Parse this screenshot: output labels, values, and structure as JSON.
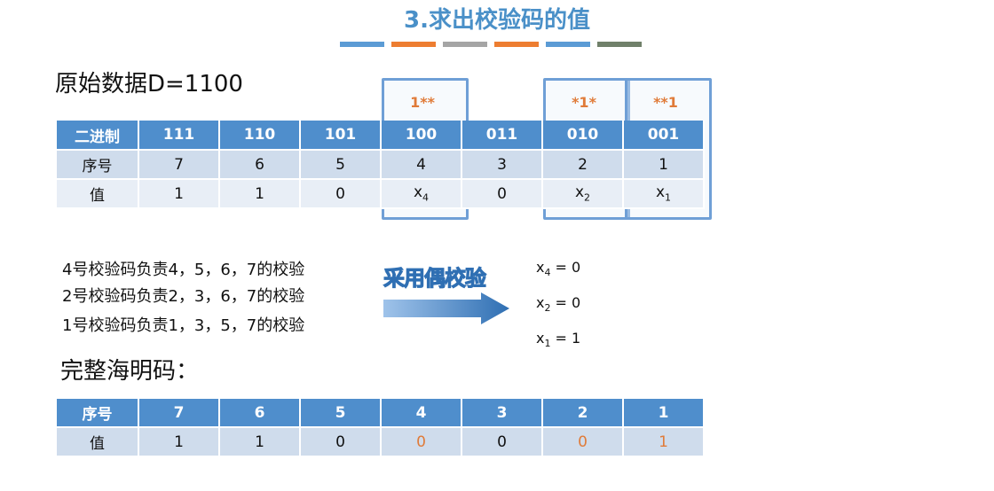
{
  "title": "3.求出校验码的值",
  "title_bar_colors": [
    "#5b9bd5",
    "#ed7d31",
    "#a5a5a5",
    "#ed7d31",
    "#5b9bd5",
    "#70806a"
  ],
  "original_data": "原始数据D=1100",
  "top_table": {
    "row_headers": [
      "二进制",
      "序号",
      "值"
    ],
    "binary": [
      "111",
      "110",
      "101",
      "100",
      "011",
      "010",
      "001"
    ],
    "index": [
      "7",
      "6",
      "5",
      "4",
      "3",
      "2",
      "1"
    ],
    "values": [
      "1",
      "1",
      "0",
      "x4",
      "0",
      "x2",
      "x1"
    ],
    "highlight_labels": [
      "1**",
      "*1*",
      "**1"
    ]
  },
  "responsibilities": [
    "4号校验码负责4，5，6，7的校验",
    "2号校验码负责2，3，6，7的校验",
    "1号校验码负责1，3，5，7的校验"
  ],
  "arrow_label": "采用偶校验",
  "results": [
    "x4 = 0",
    "x2 = 0",
    "x1 = 1"
  ],
  "complete_label": "完整海明码：",
  "bottom_table": {
    "row_headers": [
      "序号",
      "值"
    ],
    "index": [
      "7",
      "6",
      "5",
      "4",
      "3",
      "2",
      "1"
    ],
    "values": [
      "1",
      "1",
      "0",
      "0",
      "0",
      "0",
      "1"
    ]
  },
  "colors": {
    "accent": "#4f8ecc",
    "check_bit": "#e07b39"
  }
}
